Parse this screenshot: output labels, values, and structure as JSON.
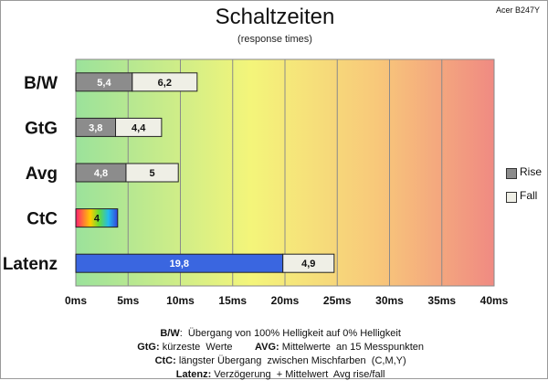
{
  "header": {
    "title": "Schaltzeiten",
    "subtitle": "(response times)",
    "model": "Acer B247Y"
  },
  "colors": {
    "rise": "#8c8c8c",
    "fall": "#efefe6",
    "latenz_rise": "#3a66e0",
    "gradient": [
      "#9be29b",
      "#f4f57a",
      "#f8c87a",
      "#f08a82"
    ]
  },
  "legend": [
    {
      "name": "Rise",
      "color": "#8c8c8c"
    },
    {
      "name": "Fall",
      "color": "#efefe6"
    }
  ],
  "chart_data": {
    "type": "bar",
    "orientation": "horizontal",
    "stacked": true,
    "title": "Schaltzeiten",
    "subtitle": "(response times)",
    "categories": [
      "B/W",
      "GtG",
      "Avg",
      "CtC",
      "Latenz"
    ],
    "series": [
      {
        "name": "Rise",
        "values": [
          5.4,
          3.8,
          4.8,
          4,
          19.8
        ],
        "labels": [
          "5,4",
          "3,8",
          "4,8",
          "4",
          "19,8"
        ]
      },
      {
        "name": "Fall",
        "values": [
          6.2,
          4.4,
          5,
          null,
          4.9
        ],
        "labels": [
          "6,2",
          "4,4",
          "5",
          "",
          "4,9"
        ]
      }
    ],
    "xlim": [
      0,
      40
    ],
    "xticks": [
      0,
      5,
      10,
      15,
      20,
      25,
      30,
      35,
      40
    ],
    "xtick_labels": [
      "0ms",
      "5ms",
      "10ms",
      "15ms",
      "20ms",
      "25ms",
      "30ms",
      "35ms",
      "40ms"
    ],
    "grid": true,
    "legend_position": "right"
  },
  "caption": [
    {
      "bold": "B/W",
      "text": ":  Übergang von 100% Helligkeit auf 0% Helligkeit"
    },
    {
      "bold": "GtG:",
      "text": " kürzeste  Werte        ",
      "bold2": "AVG:",
      "text2": " Mittelwerte  an 15 Messpunkten"
    },
    {
      "bold": "CtC:",
      "text": " längster Übergang  zwischen Mischfarben  (C,M,Y)"
    },
    {
      "bold": "Latenz:",
      "text": " Verzögerung  + Mittelwert  Avg rise/fall"
    }
  ]
}
